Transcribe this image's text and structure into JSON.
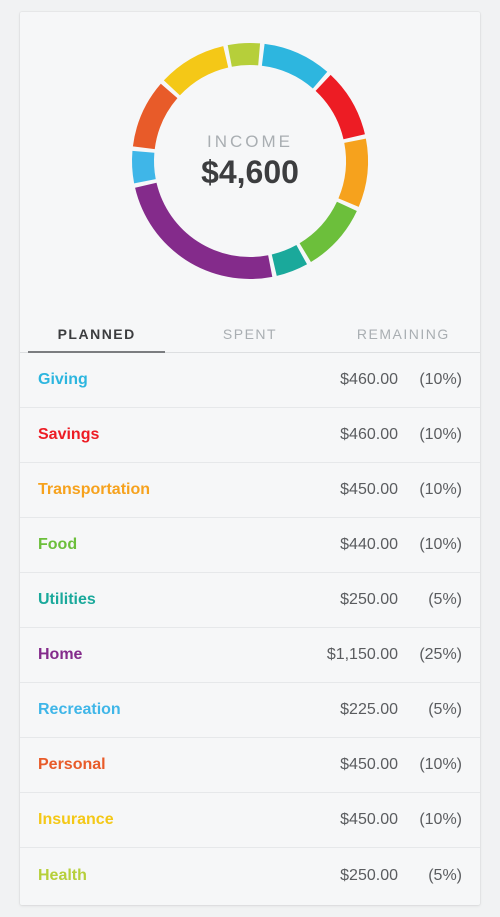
{
  "card": {
    "background_color": "#f6f7f8",
    "page_background_color": "#f1f2f3"
  },
  "donut": {
    "type": "pie",
    "center_label": "INCOME",
    "center_value": "$4,600",
    "center_label_color": "#a9aeb2",
    "center_value_color": "#3c3d3f",
    "center_label_fontsize": 17,
    "center_value_fontsize": 32,
    "outer_radius": 118,
    "inner_radius": 96,
    "gap_degrees": 2.2,
    "background_color": "#f6f7f8",
    "start_angle_deg": -84,
    "segments": [
      {
        "name": "Giving",
        "value": 10,
        "color": "#2db6df"
      },
      {
        "name": "Savings",
        "value": 10,
        "color": "#ed1c24"
      },
      {
        "name": "Transportation",
        "value": 10,
        "color": "#f6a21d"
      },
      {
        "name": "Food",
        "value": 10,
        "color": "#6cbf3b"
      },
      {
        "name": "Utilities",
        "value": 5,
        "color": "#1aa99b"
      },
      {
        "name": "Home",
        "value": 25,
        "color": "#842b8b"
      },
      {
        "name": "Recreation",
        "value": 5,
        "color": "#3fb6e8"
      },
      {
        "name": "Personal",
        "value": 10,
        "color": "#e85b29"
      },
      {
        "name": "Insurance",
        "value": 10,
        "color": "#f4c817"
      },
      {
        "name": "Health",
        "value": 5,
        "color": "#b6cf3a"
      }
    ]
  },
  "tabs": {
    "items": [
      {
        "label": "PLANNED",
        "active": true
      },
      {
        "label": "SPENT",
        "active": false
      },
      {
        "label": "REMAINING",
        "active": false
      }
    ],
    "active_color": "#3c3d3f",
    "inactive_color": "#a9aeb2",
    "underline_color": "#7b7d80",
    "border_color": "#dddfe1"
  },
  "table": {
    "row_border_color": "#e6e8ea",
    "amount_color": "#5a5c5f",
    "pct_color": "#5a5c5f",
    "rows": [
      {
        "label": "Giving",
        "amount": "$460.00",
        "pct": "(10%)",
        "color": "#2db6df"
      },
      {
        "label": "Savings",
        "amount": "$460.00",
        "pct": "(10%)",
        "color": "#ed1c24"
      },
      {
        "label": "Transportation",
        "amount": "$450.00",
        "pct": "(10%)",
        "color": "#f6a21d"
      },
      {
        "label": "Food",
        "amount": "$440.00",
        "pct": "(10%)",
        "color": "#6cbf3b"
      },
      {
        "label": "Utilities",
        "amount": "$250.00",
        "pct": "(5%)",
        "color": "#1aa99b"
      },
      {
        "label": "Home",
        "amount": "$1,150.00",
        "pct": "(25%)",
        "color": "#842b8b"
      },
      {
        "label": "Recreation",
        "amount": "$225.00",
        "pct": "(5%)",
        "color": "#3fb6e8"
      },
      {
        "label": "Personal",
        "amount": "$450.00",
        "pct": "(10%)",
        "color": "#e85b29"
      },
      {
        "label": "Insurance",
        "amount": "$450.00",
        "pct": "(10%)",
        "color": "#f4c817"
      },
      {
        "label": "Health",
        "amount": "$250.00",
        "pct": "(5%)",
        "color": "#b6cf3a"
      }
    ]
  }
}
